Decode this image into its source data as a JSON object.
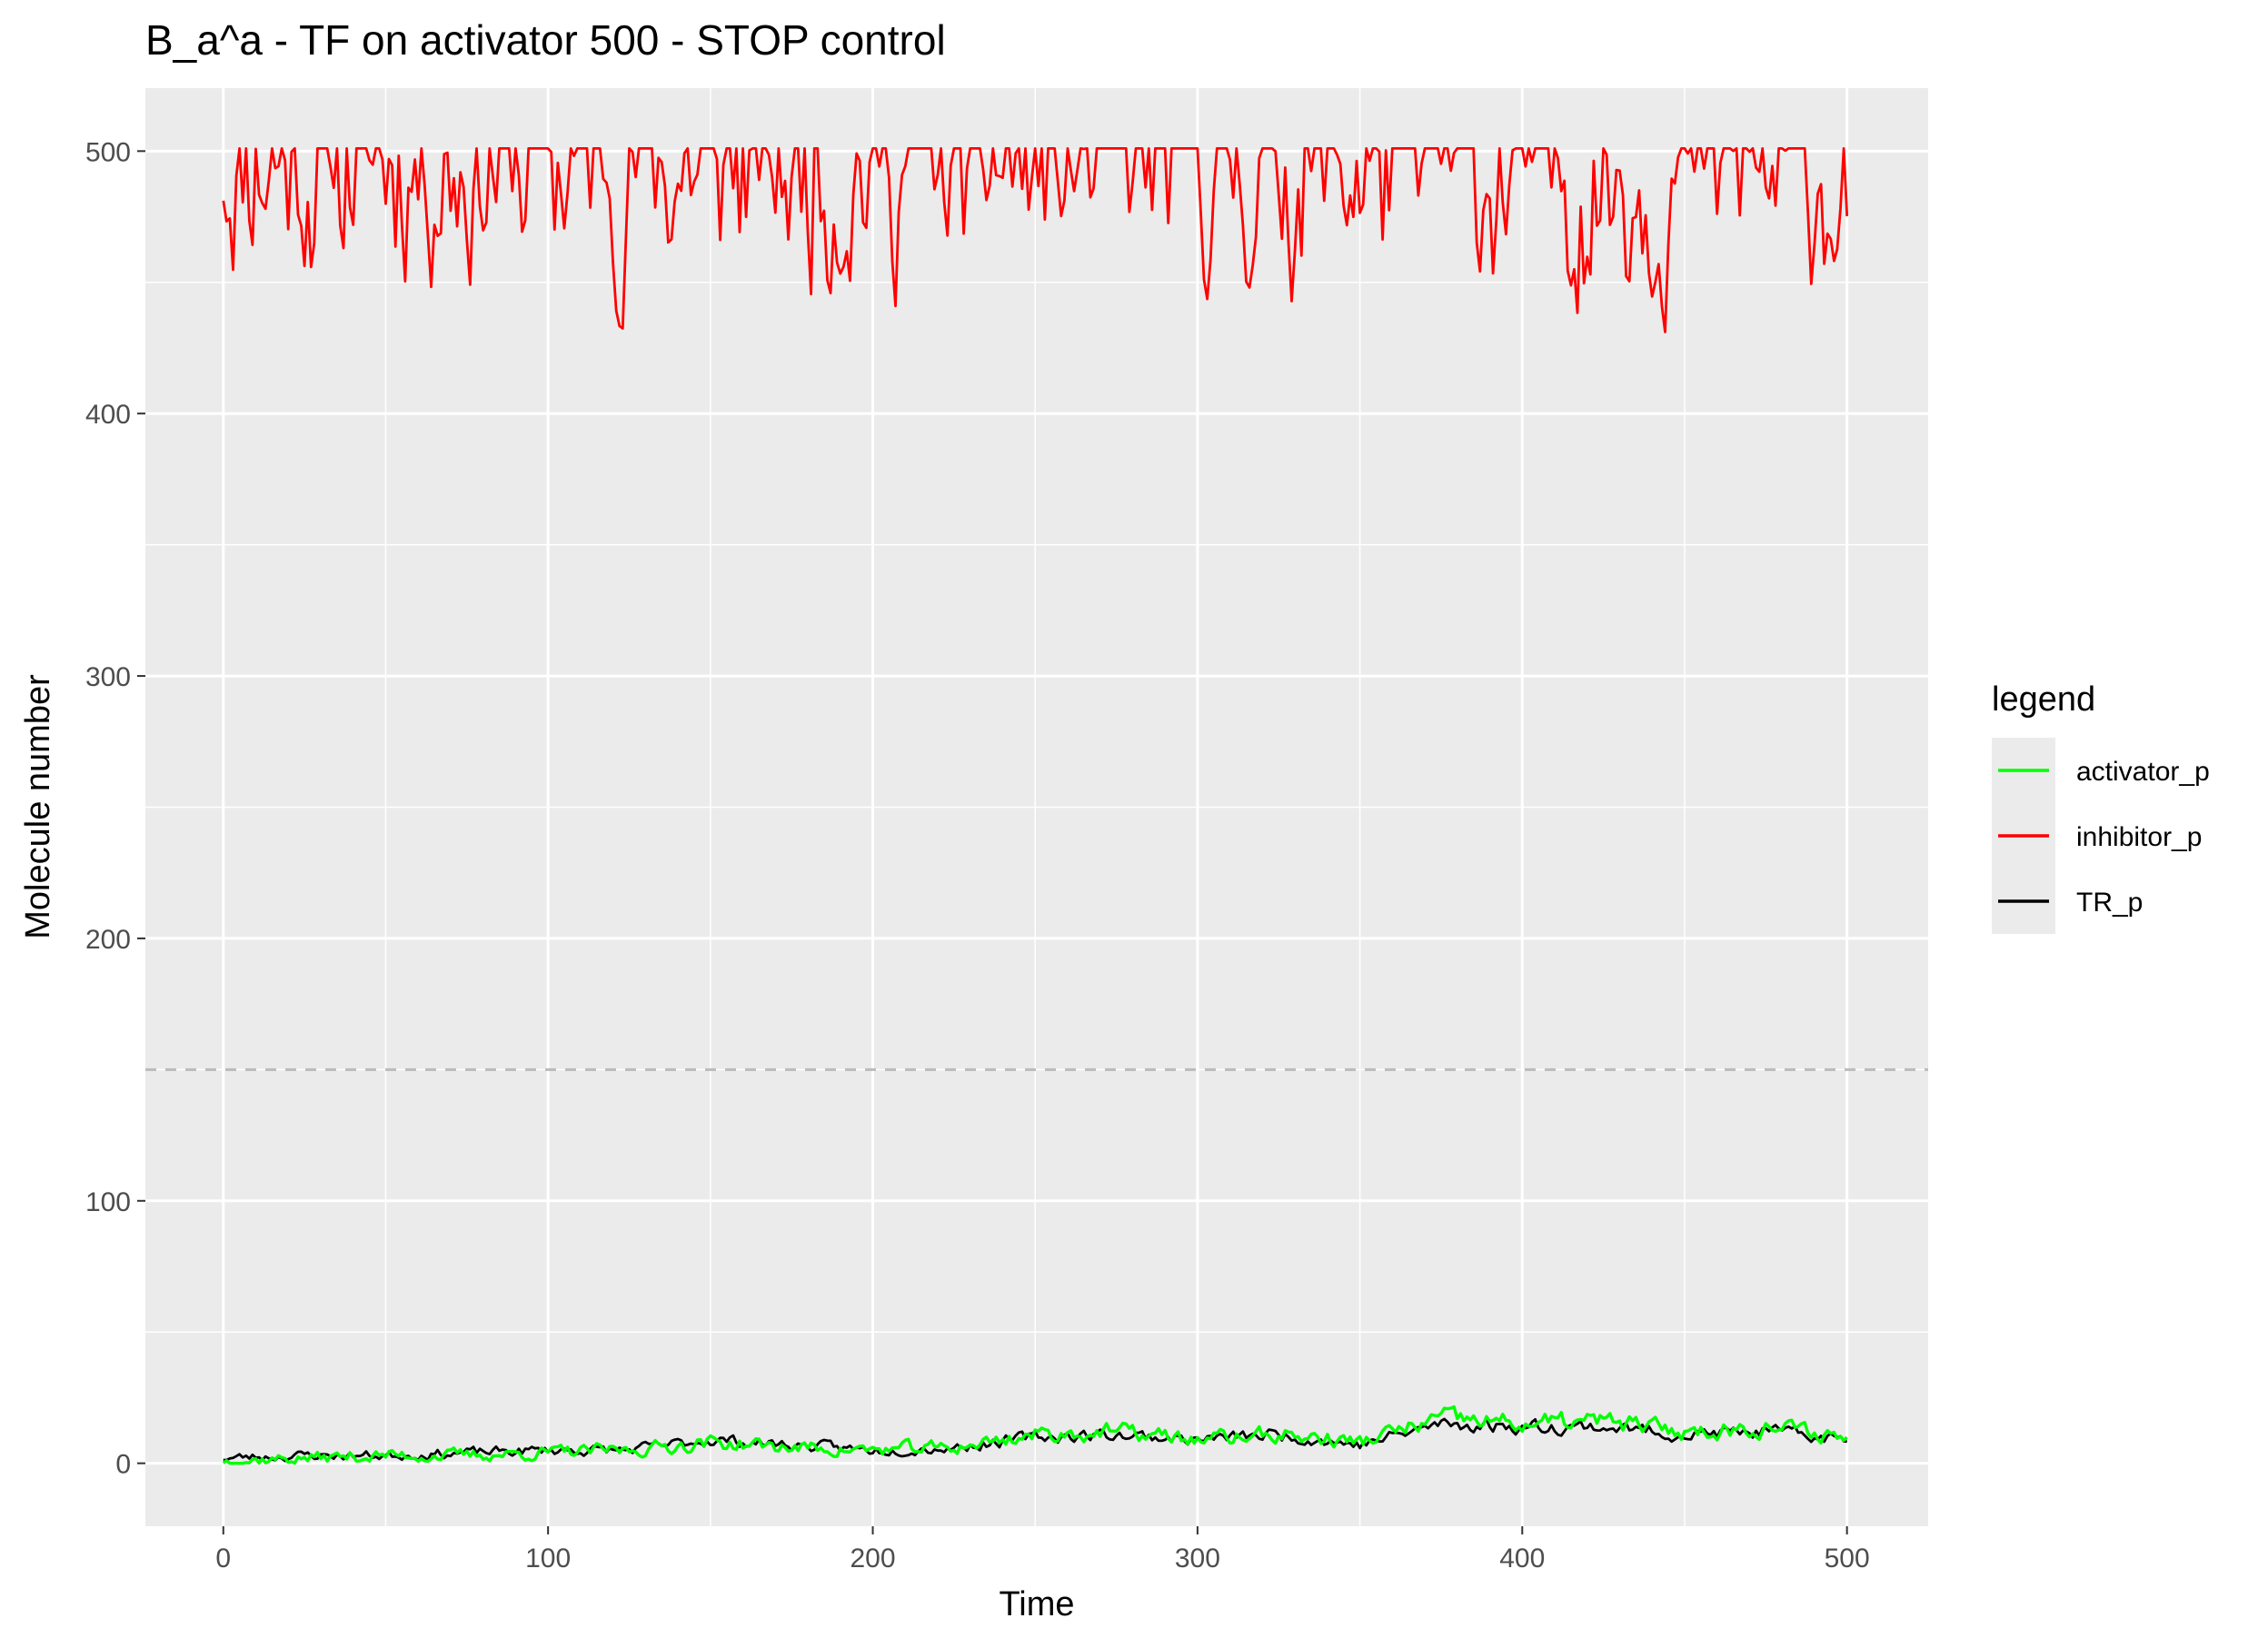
{
  "chart_data": {
    "type": "line",
    "title": "B_a^a - TF on activator 500 - STOP control",
    "xlabel": "Time",
    "ylabel": "Molecule number",
    "xlim": [
      -24,
      525
    ],
    "ylim": [
      -24,
      524
    ],
    "x_ticks": [
      0,
      100,
      200,
      300,
      400,
      500
    ],
    "x_tick_labels": [
      "0",
      "100",
      "200",
      "300",
      "400",
      "500"
    ],
    "y_ticks": [
      0,
      100,
      200,
      300,
      400,
      500
    ],
    "y_tick_labels": [
      "0",
      "100",
      "200",
      "300",
      "400",
      "500"
    ],
    "grid": true,
    "panel_background": "#ebebeb",
    "reference_line": {
      "y": 150,
      "style": "dashed",
      "color": "#bbbbbb"
    },
    "legend": {
      "title": "legend",
      "position": "right",
      "entries": [
        {
          "label": "activator_p",
          "color": "#00ff00"
        },
        {
          "label": "inhibitor_p",
          "color": "#ff0000"
        },
        {
          "label": "TR_p",
          "color": "#000000"
        }
      ]
    },
    "series": [
      {
        "name": "inhibitor_p",
        "color": "#ff0000",
        "x": [
          0,
          25,
          50,
          75,
          100,
          125,
          150,
          175,
          200,
          225,
          250,
          275,
          300,
          325,
          350,
          375,
          400,
          425,
          450,
          475,
          500
        ],
        "values": [
          500,
          498,
          499,
          498,
          497,
          497,
          495,
          495,
          496,
          496,
          495,
          495,
          496,
          495,
          496,
          494,
          492,
          492,
          493,
          492,
          493
        ]
      },
      {
        "name": "TR_p",
        "color": "#000000",
        "x": [
          0,
          25,
          50,
          75,
          100,
          125,
          150,
          175,
          200,
          225,
          250,
          275,
          300,
          325,
          350,
          375,
          400,
          425,
          450,
          475,
          500
        ],
        "values": [
          2,
          3,
          3,
          4,
          5,
          5,
          9,
          7,
          5,
          6,
          10,
          11,
          9,
          11,
          7,
          15,
          14,
          14,
          11,
          12,
          9
        ]
      },
      {
        "name": "activator_p",
        "color": "#00ff00",
        "x": [
          0,
          25,
          50,
          75,
          100,
          125,
          150,
          175,
          200,
          225,
          250,
          275,
          300,
          325,
          350,
          375,
          400,
          425,
          450,
          475,
          500
        ],
        "values": [
          1,
          2,
          3,
          3,
          4,
          5,
          8,
          6,
          5,
          6,
          11,
          12,
          9,
          11,
          8,
          17,
          15,
          16,
          12,
          14,
          10
        ]
      }
    ]
  }
}
